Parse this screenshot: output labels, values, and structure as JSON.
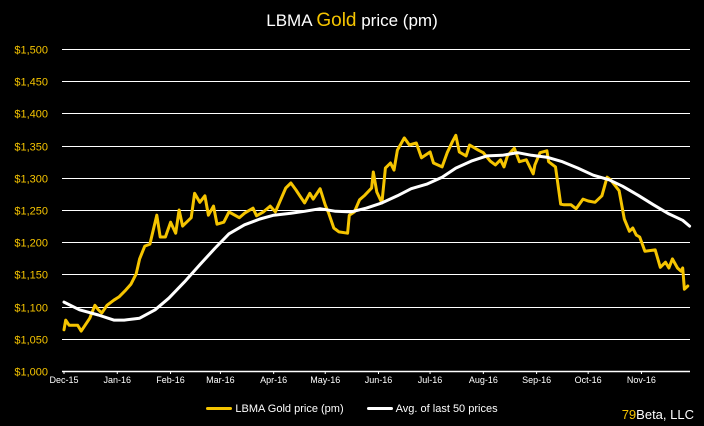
{
  "chart_data": {
    "type": "line",
    "title": {
      "prefix": "LBMA ",
      "highlight": "Gold",
      "suffix": " price (pm)"
    },
    "xlabel": "",
    "ylabel": "",
    "xlim": [
      "2015-12-01",
      "2016-12-01"
    ],
    "ylim": [
      1000,
      1500
    ],
    "y_ticks": [
      1000,
      1050,
      1100,
      1150,
      1200,
      1250,
      1300,
      1350,
      1400,
      1450,
      1500
    ],
    "y_tick_labels": [
      "$1,000",
      "$1,050",
      "$1,100",
      "$1,150",
      "$1,200",
      "$1,250",
      "$1,300",
      "$1,350",
      "$1,400",
      "$1,450",
      "$1,500"
    ],
    "x_ticks": [
      "2015-12-01",
      "2016-01-01",
      "2016-02-01",
      "2016-03-01",
      "2016-04-01",
      "2016-05-01",
      "2016-06-01",
      "2016-07-01",
      "2016-08-01",
      "2016-09-01",
      "2016-10-01",
      "2016-11-01"
    ],
    "x_tick_labels": [
      "Dec-15",
      "Jan-16",
      "Feb-16",
      "Mar-16",
      "Apr-16",
      "May-16",
      "Jun-16",
      "Jul-16",
      "Aug-16",
      "Sep-16",
      "Oct-16",
      "Nov-16"
    ],
    "grid": "horizontal",
    "legend_position": "bottom",
    "series": [
      {
        "name": "LBMA Gold price (pm)",
        "color": "#f5c400",
        "points": [
          [
            "2015-12-01",
            1064
          ],
          [
            "2015-12-02",
            1079
          ],
          [
            "2015-12-04",
            1071
          ],
          [
            "2015-12-09",
            1071
          ],
          [
            "2015-12-11",
            1062
          ],
          [
            "2015-12-16",
            1082
          ],
          [
            "2015-12-19",
            1102
          ],
          [
            "2015-12-21",
            1095
          ],
          [
            "2015-12-23",
            1090
          ],
          [
            "2015-12-26",
            1102
          ],
          [
            "2015-12-30",
            1110
          ],
          [
            "2016-01-02",
            1115
          ],
          [
            "2016-01-06",
            1126
          ],
          [
            "2016-01-09",
            1135
          ],
          [
            "2016-01-12",
            1151
          ],
          [
            "2016-01-14",
            1174
          ],
          [
            "2016-01-17",
            1194
          ],
          [
            "2016-01-20",
            1197
          ],
          [
            "2016-01-24",
            1242
          ],
          [
            "2016-01-26",
            1208
          ],
          [
            "2016-01-29",
            1208
          ],
          [
            "2016-02-01",
            1231
          ],
          [
            "2016-02-04",
            1214
          ],
          [
            "2016-02-06",
            1250
          ],
          [
            "2016-02-08",
            1225
          ],
          [
            "2016-02-13",
            1238
          ],
          [
            "2016-02-15",
            1276
          ],
          [
            "2016-02-18",
            1262
          ],
          [
            "2016-02-21",
            1272
          ],
          [
            "2016-02-23",
            1242
          ],
          [
            "2016-02-26",
            1256
          ],
          [
            "2016-02-28",
            1228
          ],
          [
            "2016-03-03",
            1231
          ],
          [
            "2016-03-06",
            1247
          ],
          [
            "2016-03-12",
            1238
          ],
          [
            "2016-03-15",
            1245
          ],
          [
            "2016-03-20",
            1253
          ],
          [
            "2016-03-22",
            1241
          ],
          [
            "2016-03-26",
            1247
          ],
          [
            "2016-03-30",
            1256
          ],
          [
            "2016-04-02",
            1247
          ],
          [
            "2016-04-08",
            1284
          ],
          [
            "2016-04-11",
            1292
          ],
          [
            "2016-04-14",
            1281
          ],
          [
            "2016-04-16",
            1273
          ],
          [
            "2016-04-19",
            1261
          ],
          [
            "2016-04-22",
            1276
          ],
          [
            "2016-04-24",
            1267
          ],
          [
            "2016-04-28",
            1283
          ],
          [
            "2016-05-01",
            1258
          ],
          [
            "2016-05-03",
            1245
          ],
          [
            "2016-05-06",
            1222
          ],
          [
            "2016-05-09",
            1216
          ],
          [
            "2016-05-14",
            1214
          ],
          [
            "2016-05-15",
            1242
          ],
          [
            "2016-05-18",
            1247
          ],
          [
            "2016-05-21",
            1266
          ],
          [
            "2016-05-24",
            1273
          ],
          [
            "2016-05-28",
            1284
          ],
          [
            "2016-05-29",
            1309
          ],
          [
            "2016-05-31",
            1278
          ],
          [
            "2016-06-03",
            1261
          ],
          [
            "2016-06-05",
            1315
          ],
          [
            "2016-06-08",
            1323
          ],
          [
            "2016-06-10",
            1312
          ],
          [
            "2016-06-12",
            1343
          ],
          [
            "2016-06-16",
            1362
          ],
          [
            "2016-06-19",
            1351
          ],
          [
            "2016-06-23",
            1354
          ],
          [
            "2016-06-26",
            1331
          ],
          [
            "2016-07-01",
            1340
          ],
          [
            "2016-07-03",
            1323
          ],
          [
            "2016-07-08",
            1317
          ],
          [
            "2016-07-11",
            1339
          ],
          [
            "2016-07-14",
            1356
          ],
          [
            "2016-07-16",
            1366
          ],
          [
            "2016-07-18",
            1340
          ],
          [
            "2016-07-22",
            1334
          ],
          [
            "2016-07-24",
            1351
          ],
          [
            "2016-07-29",
            1343
          ],
          [
            "2016-08-01",
            1339
          ],
          [
            "2016-08-05",
            1326
          ],
          [
            "2016-08-08",
            1320
          ],
          [
            "2016-08-11",
            1328
          ],
          [
            "2016-08-13",
            1317
          ],
          [
            "2016-08-15",
            1334
          ],
          [
            "2016-08-19",
            1346
          ],
          [
            "2016-08-22",
            1325
          ],
          [
            "2016-08-26",
            1328
          ],
          [
            "2016-08-30",
            1306
          ],
          [
            "2016-08-31",
            1320
          ],
          [
            "2016-09-03",
            1339
          ],
          [
            "2016-09-07",
            1342
          ],
          [
            "2016-09-08",
            1325
          ],
          [
            "2016-09-12",
            1317
          ],
          [
            "2016-09-15",
            1259
          ],
          [
            "2016-09-17",
            1258
          ],
          [
            "2016-09-21",
            1258
          ],
          [
            "2016-09-24",
            1252
          ],
          [
            "2016-09-28",
            1267
          ],
          [
            "2016-10-01",
            1264
          ],
          [
            "2016-10-05",
            1262
          ],
          [
            "2016-10-09",
            1272
          ],
          [
            "2016-10-12",
            1301
          ],
          [
            "2016-10-14",
            1297
          ],
          [
            "2016-10-19",
            1280
          ],
          [
            "2016-10-22",
            1236
          ],
          [
            "2016-10-25",
            1217
          ],
          [
            "2016-10-27",
            1222
          ],
          [
            "2016-10-29",
            1211
          ],
          [
            "2016-10-31",
            1208
          ],
          [
            "2016-11-03",
            1186
          ],
          [
            "2016-11-09",
            1188
          ],
          [
            "2016-11-12",
            1161
          ],
          [
            "2016-11-15",
            1169
          ],
          [
            "2016-11-17",
            1160
          ],
          [
            "2016-11-19",
            1174
          ],
          [
            "2016-11-22",
            1160
          ],
          [
            "2016-11-24",
            1155
          ],
          [
            "2016-11-25",
            1160
          ],
          [
            "2016-11-26",
            1127
          ],
          [
            "2016-11-28",
            1132
          ]
        ]
      },
      {
        "name": "Avg. of last 50 prices",
        "color": "#ffffff",
        "points": [
          [
            "2015-12-01",
            1107
          ],
          [
            "2015-12-10",
            1095
          ],
          [
            "2015-12-21",
            1087
          ],
          [
            "2015-12-30",
            1079
          ],
          [
            "2016-01-05",
            1079
          ],
          [
            "2016-01-14",
            1082
          ],
          [
            "2016-01-23",
            1095
          ],
          [
            "2016-01-31",
            1113
          ],
          [
            "2016-02-09",
            1138
          ],
          [
            "2016-02-18",
            1165
          ],
          [
            "2016-02-27",
            1191
          ],
          [
            "2016-03-06",
            1213
          ],
          [
            "2016-03-15",
            1227
          ],
          [
            "2016-03-24",
            1236
          ],
          [
            "2016-04-01",
            1242
          ],
          [
            "2016-04-11",
            1245
          ],
          [
            "2016-04-19",
            1248
          ],
          [
            "2016-04-28",
            1252
          ],
          [
            "2016-05-07",
            1248
          ],
          [
            "2016-05-16",
            1247
          ],
          [
            "2016-05-25",
            1253
          ],
          [
            "2016-06-03",
            1261
          ],
          [
            "2016-06-12",
            1272
          ],
          [
            "2016-06-20",
            1283
          ],
          [
            "2016-06-29",
            1290
          ],
          [
            "2016-07-08",
            1301
          ],
          [
            "2016-07-16",
            1315
          ],
          [
            "2016-07-25",
            1326
          ],
          [
            "2016-08-03",
            1334
          ],
          [
            "2016-08-12",
            1335
          ],
          [
            "2016-08-21",
            1339
          ],
          [
            "2016-08-29",
            1335
          ],
          [
            "2016-09-07",
            1332
          ],
          [
            "2016-09-16",
            1325
          ],
          [
            "2016-09-25",
            1315
          ],
          [
            "2016-10-04",
            1304
          ],
          [
            "2016-10-13",
            1297
          ],
          [
            "2016-10-21",
            1287
          ],
          [
            "2016-10-30",
            1273
          ],
          [
            "2016-11-08",
            1258
          ],
          [
            "2016-11-17",
            1244
          ],
          [
            "2016-11-25",
            1234
          ],
          [
            "2016-11-29",
            1225
          ]
        ]
      }
    ]
  },
  "credit": {
    "num": "79",
    "rest": "Beta, LLC"
  }
}
